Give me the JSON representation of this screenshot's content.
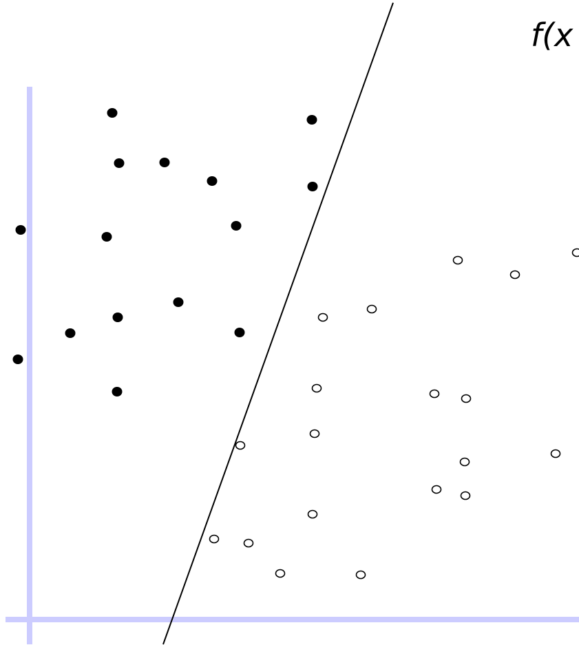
{
  "label": "f(x",
  "colors": {
    "axis": "#ccccff",
    "line": "#000000",
    "filled_point": "#000000",
    "hollow_point_stroke": "#000000",
    "background": "#ffffff"
  },
  "classes": [
    {
      "name": "filled",
      "style": "filled"
    },
    {
      "name": "hollow",
      "style": "hollow"
    }
  ]
}
